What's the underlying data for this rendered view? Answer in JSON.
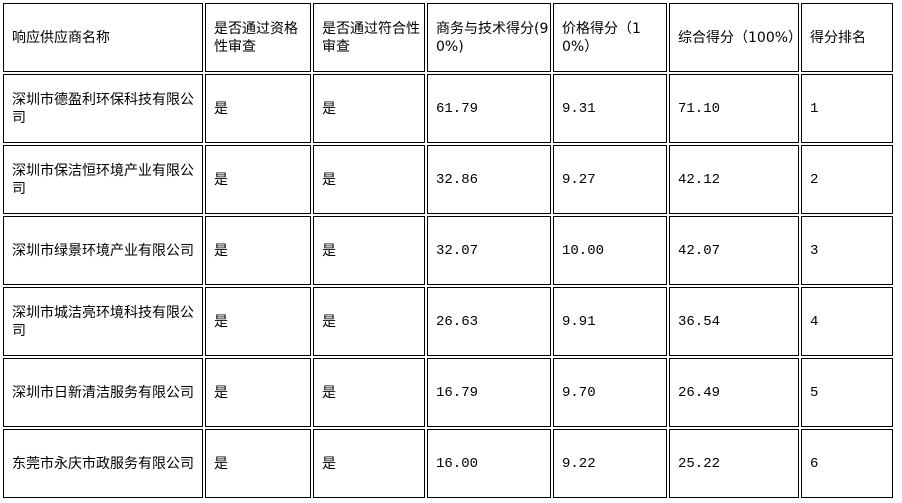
{
  "table": {
    "headers": [
      "响应供应商名称",
      "是否通过资格性审查",
      "是否通过符合性审查",
      "商务与技术得分(90%)",
      "价格得分（10%）",
      "综合得分（100%）",
      "得分排名"
    ],
    "rows": [
      [
        "深圳市德盈利环保科技有限公司",
        "是",
        "是",
        "61.79",
        "9.31",
        "71.10",
        "1"
      ],
      [
        "深圳市保洁恒环境产业有限公司",
        "是",
        "是",
        "32.86",
        "9.27",
        "42.12",
        "2"
      ],
      [
        "深圳市绿景环境产业有限公司",
        "是",
        "是",
        "32.07",
        "10.00",
        "42.07",
        "3"
      ],
      [
        "深圳市城洁亮环境科技有限公司",
        "是",
        "是",
        "26.63",
        "9.91",
        "36.54",
        "4"
      ],
      [
        "深圳市日新清洁服务有限公司",
        "是",
        "是",
        "16.79",
        "9.70",
        "26.49",
        "5"
      ],
      [
        "东莞市永庆市政服务有限公司",
        "是",
        "是",
        "16.00",
        "9.22",
        "25.22",
        "6"
      ]
    ]
  }
}
